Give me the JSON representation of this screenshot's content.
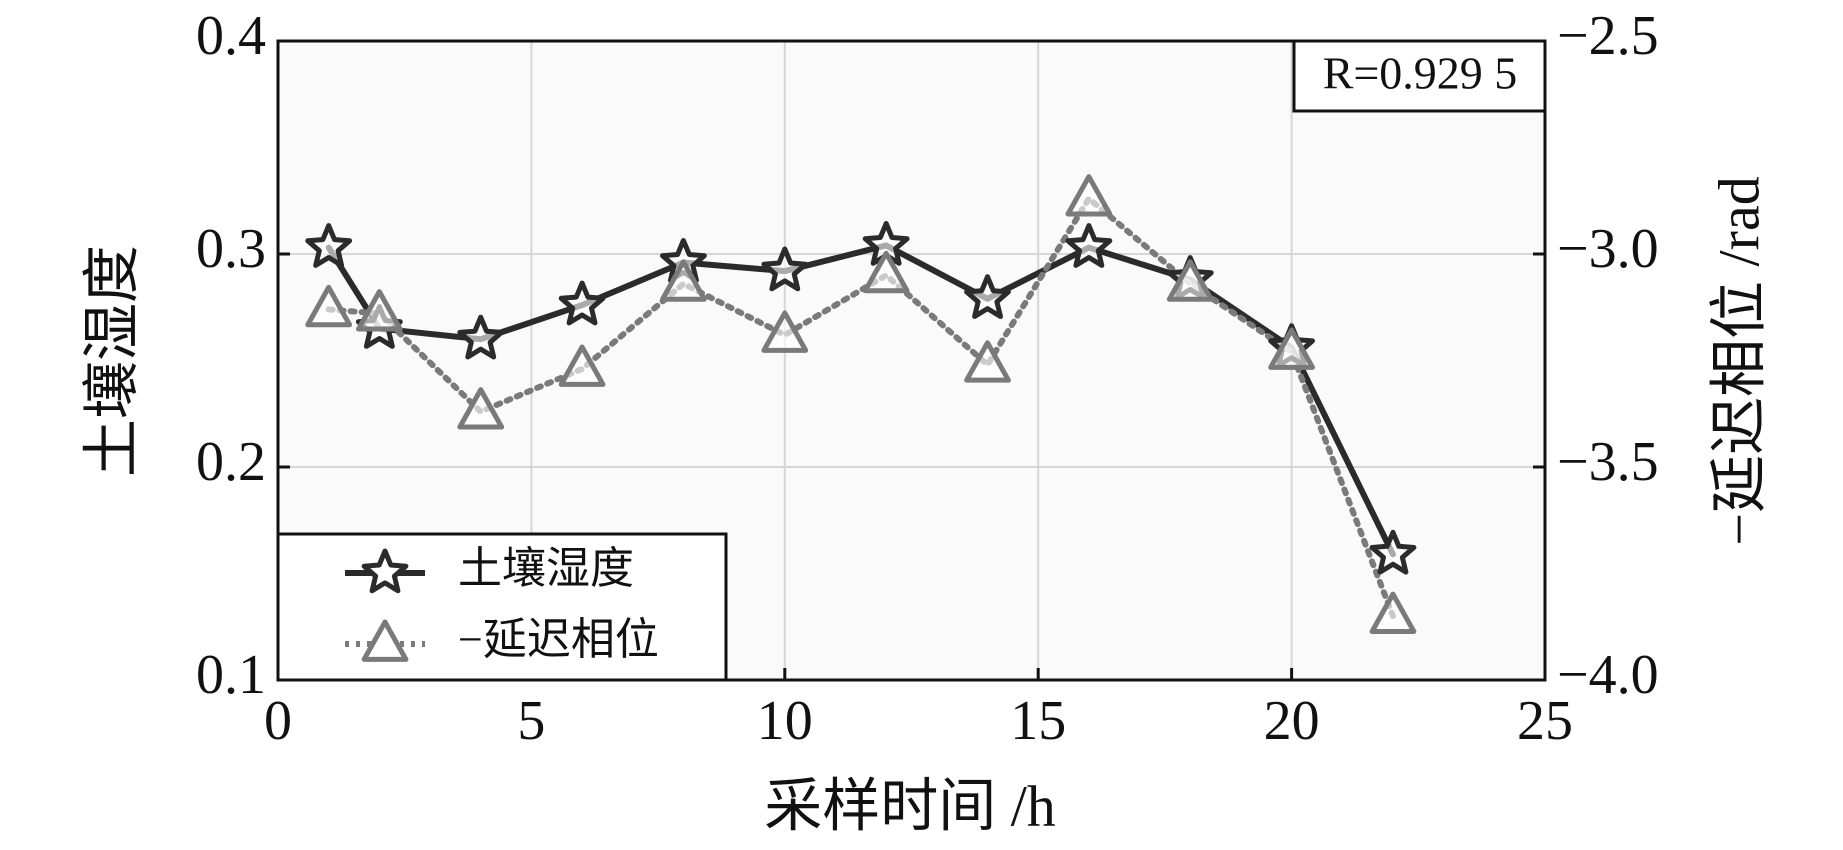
{
  "chart_data": {
    "type": "line",
    "x_label": "采样时间 /h",
    "y_label": "土壤湿度",
    "y2_label": "−延迟相位 /rad",
    "annotation": "R=0.929 5",
    "x": [
      1,
      2,
      4,
      6,
      8,
      10,
      12,
      14,
      16,
      18,
      20,
      22
    ],
    "series": [
      {
        "name": "土壤湿度",
        "color": "#2b2b2b",
        "line_style": "solid",
        "marker": "star",
        "values": [
          0.303,
          0.265,
          0.26,
          0.276,
          0.296,
          0.292,
          0.304,
          0.279,
          0.303,
          0.288,
          0.256,
          0.159
        ]
      },
      {
        "name": "−延迟相位",
        "color": "#7a7a7a",
        "line_style": "dotted",
        "marker": "triangle",
        "axis": "y2",
        "values": [
          -3.13,
          -3.14,
          -3.37,
          -3.27,
          -3.07,
          -3.19,
          -3.05,
          -3.26,
          -2.87,
          -3.07,
          -3.23,
          -3.85
        ]
      }
    ],
    "xlim": [
      0,
      25
    ],
    "xticks": [
      0,
      5,
      10,
      15,
      20,
      25
    ],
    "ylim": [
      0.1,
      0.4
    ],
    "yticks": [
      0.1,
      0.2,
      0.3,
      0.4
    ],
    "y2lim": [
      -4.0,
      -2.5
    ],
    "y2ticks": [
      {
        "value": -4.0,
        "label": "−4.0"
      },
      {
        "value": -3.5,
        "label": "−3.5"
      },
      {
        "value": -3.0,
        "label": "−3.0"
      },
      {
        "value": -2.5,
        "label": "−2.5"
      }
    ],
    "grid": true,
    "legend": "lower left"
  }
}
